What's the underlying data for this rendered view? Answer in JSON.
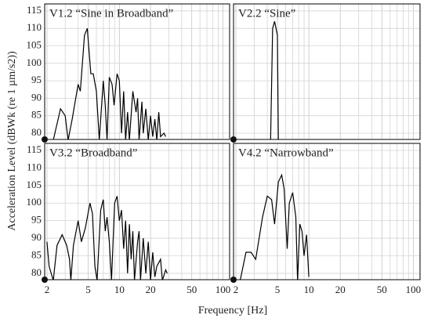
{
  "ylabel": "Acceleration Level (dBWk (re 1 µm/s2))",
  "xlabel": "Frequency [Hz]",
  "chart_data": [
    {
      "type": "line",
      "title": "V1.2 “Sine in Broadband”",
      "color": "#000000",
      "xscale": "log",
      "grid": true,
      "xlim": [
        1.9,
        116
      ],
      "ylim": [
        78.2,
        117
      ],
      "xticks": [
        2,
        5,
        10,
        20,
        50,
        100
      ],
      "xminor": [
        3,
        4,
        6,
        7,
        8,
        9,
        30,
        40,
        60,
        70,
        80,
        90
      ],
      "yticks": [
        80,
        85,
        90,
        95,
        100,
        105,
        110,
        115
      ],
      "xtick_labels": false,
      "ytick_labels": true,
      "x": [
        2.3,
        2.7,
        3.0,
        3.2,
        3.5,
        4.0,
        4.2,
        4.6,
        4.9,
        5.3,
        5.6,
        6.0,
        6.4,
        7.0,
        7.3,
        7.6,
        8.0,
        8.5,
        8.9,
        9.5,
        10,
        10.5,
        11,
        11.5,
        12,
        12.5,
        13.5,
        14.5,
        15,
        15.5,
        16.5,
        17,
        18,
        19,
        20,
        21,
        22,
        23,
        24,
        25,
        27,
        28
      ],
      "values": [
        78,
        87,
        85,
        78,
        84,
        94,
        92,
        108,
        110,
        97,
        97,
        92,
        78,
        95,
        88,
        78,
        96,
        94,
        88,
        97,
        95,
        80,
        92,
        78,
        86,
        78,
        92,
        86,
        90,
        78,
        89,
        80,
        87,
        78,
        85,
        79,
        84,
        78,
        86,
        79,
        80,
        79
      ]
    },
    {
      "type": "line",
      "title": "V2.2 “Sine”",
      "color": "#000000",
      "xscale": "log",
      "grid": true,
      "xlim": [
        1.9,
        116
      ],
      "ylim": [
        78.2,
        117
      ],
      "xticks": [
        2,
        5,
        10,
        20,
        50,
        100
      ],
      "xminor": [
        3,
        4,
        6,
        7,
        8,
        9,
        30,
        40,
        60,
        70,
        80,
        90
      ],
      "yticks": [
        80,
        85,
        90,
        95,
        100,
        105,
        110,
        115
      ],
      "xtick_labels": false,
      "ytick_labels": false,
      "x": [
        4.3,
        4.5,
        4.7,
        5.0,
        5.1
      ],
      "values": [
        78,
        110,
        112,
        108,
        78
      ]
    },
    {
      "type": "line",
      "title": "V3.2 “Broadband”",
      "color": "#000000",
      "xscale": "log",
      "grid": true,
      "xlim": [
        1.9,
        116
      ],
      "ylim": [
        78.2,
        117
      ],
      "xticks": [
        2,
        5,
        10,
        20,
        50,
        100
      ],
      "xminor": [
        3,
        4,
        6,
        7,
        8,
        9,
        30,
        40,
        60,
        70,
        80,
        90
      ],
      "yticks": [
        80,
        85,
        90,
        95,
        100,
        105,
        110,
        115
      ],
      "xtick_labels": true,
      "ytick_labels": true,
      "x": [
        2.0,
        2.1,
        2.3,
        2.5,
        2.8,
        3.1,
        3.3,
        3.4,
        3.6,
        4.0,
        4.3,
        4.7,
        5.2,
        5.5,
        5.8,
        6.1,
        6.6,
        7.0,
        7.3,
        7.6,
        8.0,
        8.4,
        9,
        9.5,
        10,
        10.5,
        11,
        11.5,
        12,
        12.5,
        13,
        13.5,
        14,
        15,
        15.5,
        16,
        17,
        18,
        19,
        20,
        21,
        22,
        23,
        25,
        26,
        28,
        29
      ],
      "values": [
        89,
        82,
        78,
        88,
        91,
        88,
        84,
        78,
        88,
        95,
        89,
        93,
        100,
        97,
        82,
        78,
        98,
        101,
        92,
        96,
        89,
        78,
        100,
        102,
        95,
        98,
        87,
        95,
        80,
        94,
        84,
        92,
        78,
        89,
        92,
        78,
        90,
        80,
        89,
        78,
        86,
        79,
        82,
        84,
        78,
        81,
        80
      ]
    },
    {
      "type": "line",
      "title": "V4.2 “Narrowband”",
      "color": "#000000",
      "xscale": "log",
      "grid": true,
      "xlim": [
        1.9,
        116
      ],
      "ylim": [
        78.2,
        117
      ],
      "xticks": [
        2,
        5,
        10,
        20,
        50,
        100
      ],
      "xminor": [
        3,
        4,
        6,
        7,
        8,
        9,
        30,
        40,
        60,
        70,
        80,
        90
      ],
      "yticks": [
        80,
        85,
        90,
        95,
        100,
        105,
        110,
        115
      ],
      "xtick_labels": true,
      "ytick_labels": false,
      "x": [
        2.2,
        2.5,
        2.8,
        3.1,
        3.6,
        4.0,
        4.4,
        4.7,
        5.1,
        5.5,
        5.8,
        6.2,
        6.5,
        7.0,
        7.5,
        7.8,
        8.2,
        8.6,
        9.0,
        9.5,
        10.0
      ],
      "values": [
        78,
        86,
        86,
        84,
        96,
        102,
        101,
        94,
        106,
        108,
        104,
        87,
        100,
        103,
        96,
        78,
        94,
        92,
        85,
        91,
        79
      ]
    }
  ]
}
